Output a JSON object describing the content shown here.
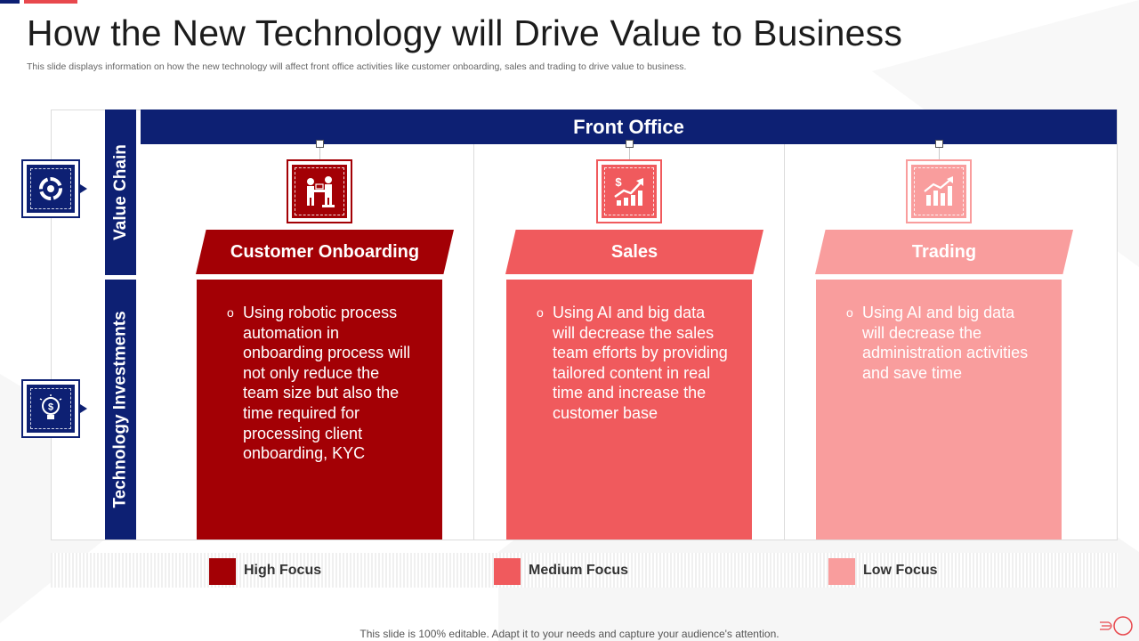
{
  "header": {
    "title": "How the New Technology will Drive Value to Business",
    "subtitle": "This slide displays information on how the new technology will affect front office activities like customer onboarding, sales and trading to drive value to  business."
  },
  "side_labels": {
    "value_chain": "Value Chain",
    "technology_investments": "Technology Investments",
    "value_chain_icon": "pie-chart-icon",
    "technology_icon": "lightbulb-dollar-icon"
  },
  "front_office": {
    "label": "Front Office"
  },
  "categories": [
    {
      "title": "Customer Onboarding",
      "icon": "customer-handshake-icon",
      "color": "#a30005",
      "bullet": "Using robotic process automation in onboarding process will not only reduce the team size but also the time required for processing client onboarding, KYC"
    },
    {
      "title": "Sales",
      "icon": "sales-growth-icon",
      "color": "#f05a5d",
      "bullet": "Using AI and big data will decrease the sales team efforts by providing tailored content in real time and increase the customer base"
    },
    {
      "title": "Trading",
      "icon": "trading-chart-icon",
      "color": "#f99d9d",
      "bullet": "Using AI and big data will decrease the administration activities and save time"
    }
  ],
  "legend": [
    {
      "label": "High Focus",
      "color": "#a30005"
    },
    {
      "label": "Medium Focus",
      "color": "#f05a5d"
    },
    {
      "label": "Low Focus",
      "color": "#f99d9d"
    }
  ],
  "footer": {
    "text": "This slide is 100%  editable. Adapt it to your needs and capture your audience's attention."
  },
  "colors": {
    "navy": "#0d2073"
  }
}
